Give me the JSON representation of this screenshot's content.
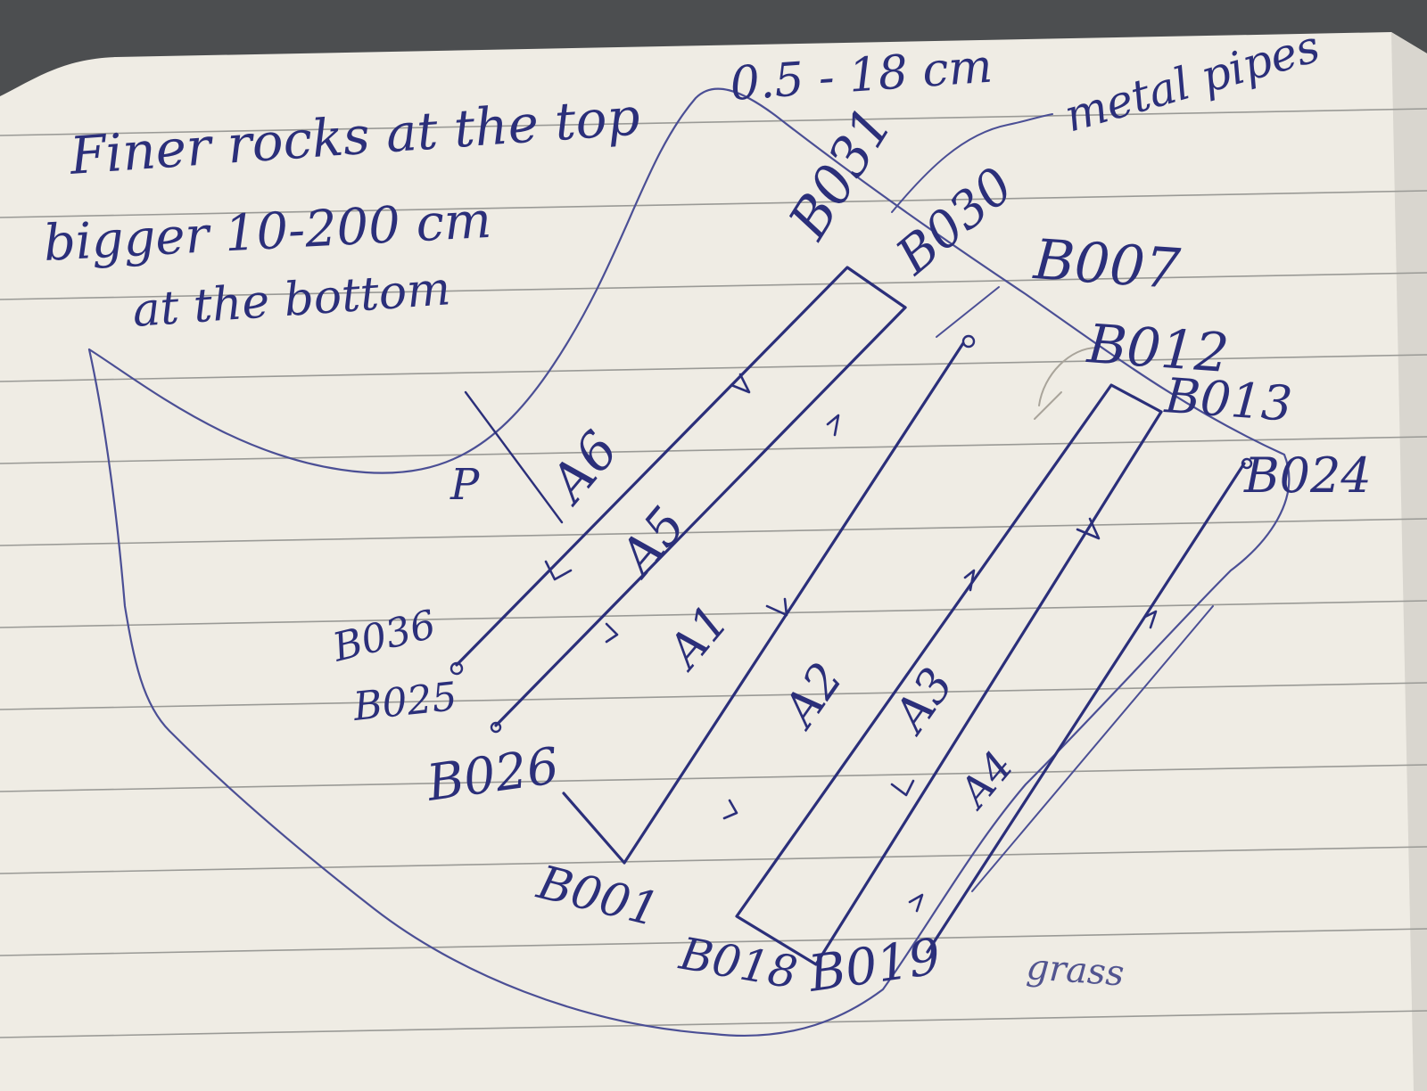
{
  "notes": {
    "top_note": "Finer rocks at the top",
    "top_range": "0.5 - 18 cm",
    "metal_pipes": "metal pipes",
    "bottom_note_line1": "bigger 10-200 cm",
    "bottom_note_line2": "at the bottom",
    "grass": "grass",
    "point_label": "P"
  },
  "transect_labels": [
    "A1",
    "A2",
    "A3",
    "A4",
    "A5",
    "A6"
  ],
  "boulder_labels": [
    "B031",
    "B030",
    "B007",
    "B012",
    "B013",
    "B024",
    "B036",
    "B025",
    "B026",
    "B001",
    "B018",
    "B019"
  ],
  "colors": {
    "ink": "#2b2f7a",
    "paper": "#efece4",
    "ruled_line": "#9a9a96",
    "background": "#4c4e50"
  }
}
